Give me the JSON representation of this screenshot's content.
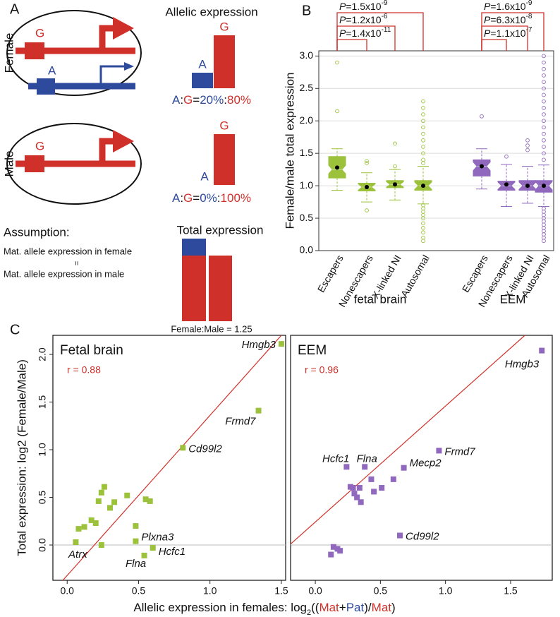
{
  "panel_labels": [
    "A",
    "B",
    "C"
  ],
  "panel_a": {
    "female": {
      "label": "Female",
      "alleles": [
        "G",
        "A"
      ]
    },
    "male": {
      "label": "Male",
      "alleles": [
        "G"
      ]
    },
    "allelic": {
      "title": "Allelic expression",
      "female_bars": [
        "A",
        "G"
      ],
      "female_ratio": [
        "A",
        ":",
        "G",
        "=",
        "20%",
        ":",
        "80%"
      ],
      "male_bars": [
        "A",
        "G"
      ],
      "male_ratio": [
        "A",
        ":",
        "G",
        "=",
        "0%",
        ":",
        "100%"
      ]
    },
    "assumption": {
      "title": "Assumption:",
      "lines": [
        "Mat. allele expression in female",
        "=",
        "Mat. allele expression in male"
      ]
    },
    "total": {
      "title": "Total expression",
      "ratio": "Female:Male = 1.25"
    }
  },
  "chart_data": [
    {
      "type": "box",
      "ylabel": "Female/male total expression",
      "ylim": [
        0,
        3.08
      ],
      "yticks": [
        {
          "value": 0,
          "label": "0.0"
        },
        {
          "value": 0.5,
          "label": "0.5"
        },
        {
          "value": 1,
          "label": "1.0"
        },
        {
          "value": 1.5,
          "label": "1.5"
        },
        {
          "value": 2,
          "label": "2.0"
        },
        {
          "value": 2.5,
          "label": "2.5"
        },
        {
          "value": 3,
          "label": "3.0"
        }
      ],
      "grid": true,
      "series": [
        {
          "name": "fetal brain",
          "color": "#9cc23c",
          "categories": [
            "Escapers",
            "Nonescapers",
            "X-linked NI",
            "Autosomal"
          ],
          "q1": [
            1.12,
            0.92,
            0.97,
            0.93
          ],
          "median": [
            1.25,
            0.98,
            1.02,
            1.0
          ],
          "q3": [
            1.45,
            1.04,
            1.08,
            1.08
          ],
          "whislo": [
            0.93,
            0.75,
            0.78,
            0.72
          ],
          "whishi": [
            1.57,
            1.2,
            1.25,
            1.3
          ],
          "mean": [
            1.28,
            0.98,
            1.02,
            1.0
          ],
          "outliers": [
            [
              2.15,
              2.9
            ],
            [
              0.62,
              1.35,
              1.38
            ],
            [
              1.3,
              1.65
            ],
            [
              0.15,
              0.2,
              0.28,
              0.35,
              0.42,
              0.5,
              0.55,
              0.6,
              0.65,
              0.7,
              1.35,
              1.4,
              1.5,
              1.6,
              1.7,
              1.8,
              1.9,
              2.0,
              2.1,
              2.2,
              2.3
            ]
          ],
          "pvalues": [
            {
              "p": "P",
              "text": "=1.5x10",
              "exp": "-9"
            },
            {
              "p": "P",
              "text": "=1.2x10",
              "exp": "-6"
            },
            {
              "p": "P",
              "text": "=1.4x10",
              "exp": "-11"
            }
          ]
        },
        {
          "name": "EEM",
          "color": "#9068bd",
          "categories": [
            "Escapers",
            "Nonescapers",
            "X-linked NI",
            "Autosomal"
          ],
          "q1": [
            1.15,
            0.93,
            0.93,
            0.9
          ],
          "median": [
            1.3,
            1.0,
            1.0,
            1.0
          ],
          "q3": [
            1.4,
            1.07,
            1.08,
            1.08
          ],
          "whislo": [
            0.95,
            0.68,
            0.73,
            0.68
          ],
          "whishi": [
            1.57,
            1.33,
            1.3,
            1.32
          ],
          "mean": [
            1.3,
            1.02,
            1.0,
            1.0
          ],
          "outliers": [
            [
              2.07
            ],
            [
              1.45
            ],
            [
              1.55,
              1.62,
              1.7
            ],
            [
              0.15,
              0.2,
              0.25,
              0.3,
              0.35,
              0.4,
              0.45,
              0.5,
              0.55,
              0.6,
              0.65,
              1.4,
              1.5,
              1.6,
              1.7,
              1.8,
              1.9,
              2.0,
              2.1,
              2.2,
              2.3,
              2.4,
              2.5,
              2.6,
              2.7,
              2.8,
              2.9,
              3.0
            ]
          ],
          "pvalues": [
            {
              "p": "P",
              "text": "=1.6x10",
              "exp": "-9"
            },
            {
              "p": "P",
              "text": "=6.3x10",
              "exp": "-8"
            },
            {
              "p": "P",
              "text": "=1.1x10",
              "exp": "-7"
            }
          ]
        }
      ]
    },
    {
      "type": "scatter",
      "title": "Fetal brain",
      "annotation": "r = 0.88",
      "color": "#9cc23c",
      "ylabel": "Total expression: log2 (Female/Male)",
      "xlabel": [
        "Allelic expression in females: log",
        "2",
        "((",
        "Mat",
        "+",
        "Pat",
        ")",
        "/",
        "Mat",
        ")"
      ],
      "xlim": [
        -0.1,
        1.53
      ],
      "ylim": [
        -0.37,
        2.2
      ],
      "xticks": [
        {
          "value": 0,
          "label": "0.0"
        },
        {
          "value": 0.5,
          "label": "0.5"
        },
        {
          "value": 1,
          "label": "1.0"
        },
        {
          "value": 1.5,
          "label": "1.5"
        }
      ],
      "yticks": [
        {
          "value": 0,
          "label": "0.0"
        },
        {
          "value": 0.5,
          "label": "0.5"
        },
        {
          "value": 1,
          "label": "1.0"
        },
        {
          "value": 1.5,
          "label": "1.5"
        },
        {
          "value": 2,
          "label": "2.0"
        }
      ],
      "hline": 0,
      "fit_line": {
        "x": [
          -0.03,
          1.5
        ],
        "y": [
          -0.37,
          2.2
        ]
      },
      "x": [
        1.5,
        1.34,
        0.81,
        0.48,
        0.6,
        0.54,
        0.06,
        0.08,
        0.12,
        0.17,
        0.2,
        0.22,
        0.24,
        0.24,
        0.26,
        0.3,
        0.33,
        0.42,
        0.48,
        0.55,
        0.58
      ],
      "y": [
        2.11,
        1.41,
        1.02,
        0.04,
        -0.03,
        -0.11,
        0.03,
        0.17,
        0.19,
        0.26,
        0.23,
        0.46,
        0.0,
        0.55,
        0.61,
        0.39,
        0.45,
        0.52,
        0.2,
        0.48,
        0.46
      ],
      "point_labels": [
        "Hmgb3",
        "Frmd7",
        "Cd99l2",
        "Plxna3",
        "Hcfc1",
        "Flna",
        "Atrx",
        null,
        null,
        null,
        null,
        null,
        null,
        null,
        null,
        null,
        null,
        null,
        null,
        null,
        null
      ]
    },
    {
      "type": "scatter",
      "title": "EEM",
      "annotation": "r = 0.96",
      "color": "#9068bd",
      "xlim": [
        -0.19,
        1.82
      ],
      "ylim": [
        -0.37,
        2.2
      ],
      "xticks": [
        {
          "value": 0,
          "label": "0.0"
        },
        {
          "value": 0.5,
          "label": "0.5"
        },
        {
          "value": 1,
          "label": "1.0"
        },
        {
          "value": 1.5,
          "label": "1.5"
        }
      ],
      "hline": 0,
      "fit_line": {
        "x": [
          -0.19,
          1.61
        ],
        "y": [
          0.01,
          2.2
        ]
      },
      "x": [
        1.74,
        0.95,
        0.68,
        0.24,
        0.38,
        0.65,
        0.27,
        0.29,
        0.3,
        0.32,
        0.35,
        0.34,
        0.43,
        0.45,
        0.51,
        0.6,
        0.14,
        0.17,
        0.19,
        0.12
      ],
      "y": [
        2.04,
        0.99,
        0.81,
        0.82,
        0.82,
        0.1,
        0.61,
        0.6,
        0.54,
        0.5,
        0.45,
        0.6,
        0.69,
        0.56,
        0.6,
        0.69,
        -0.02,
        -0.04,
        -0.06,
        -0.1
      ],
      "point_labels": [
        "Hmgb3",
        "Frmd7",
        "Mecp2",
        "Hcfc1",
        "Flna",
        "Cd99l2",
        null,
        null,
        null,
        null,
        null,
        null,
        null,
        null,
        null,
        null,
        null,
        null,
        null,
        null
      ]
    }
  ]
}
